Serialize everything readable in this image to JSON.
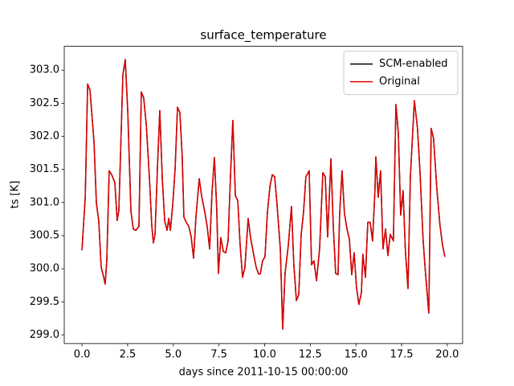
{
  "chart_data": {
    "type": "line",
    "title": "surface_temperature",
    "xlabel": "days since 2011-10-15 00:00:00",
    "ylabel": "ts [K]",
    "x": [
      0,
      0.18,
      0.31,
      0.44,
      0.66,
      0.79,
      0.92,
      1.05,
      1.19,
      1.27,
      1.36,
      1.49,
      1.63,
      1.8,
      1.93,
      2.02,
      2.24,
      2.37,
      2.51,
      2.68,
      2.81,
      2.95,
      3.12,
      3.25,
      3.38,
      3.52,
      3.69,
      3.82,
      3.91,
      4.0,
      4.13,
      4.26,
      4.4,
      4.53,
      4.66,
      4.75,
      4.84,
      4.97,
      5.1,
      5.23,
      5.36,
      5.49,
      5.58,
      5.71,
      5.85,
      5.98,
      6.11,
      6.24,
      6.42,
      6.55,
      6.73,
      6.86,
      6.99,
      7.12,
      7.25,
      7.38,
      7.47,
      7.6,
      7.74,
      7.87,
      8.0,
      8.13,
      8.26,
      8.4,
      8.53,
      8.66,
      8.79,
      8.92,
      9.1,
      9.23,
      9.41,
      9.54,
      9.67,
      9.76,
      9.89,
      10.02,
      10.15,
      10.29,
      10.42,
      10.55,
      10.68,
      10.86,
      10.99,
      11.12,
      11.3,
      11.47,
      11.6,
      11.74,
      11.87,
      12.0,
      12.13,
      12.26,
      12.44,
      12.57,
      12.7,
      12.84,
      13.01,
      13.19,
      13.32,
      13.45,
      13.63,
      13.76,
      13.89,
      14.02,
      14.11,
      14.24,
      14.37,
      14.51,
      14.64,
      14.77,
      14.9,
      15.03,
      15.16,
      15.3,
      15.38,
      15.52,
      15.65,
      15.78,
      15.91,
      16.04,
      16.09,
      16.22,
      16.35,
      16.48,
      16.62,
      16.75,
      16.88,
      17.05,
      17.19,
      17.32,
      17.45,
      17.58,
      17.71,
      17.85,
      17.98,
      18.2,
      18.37,
      18.51,
      18.68,
      18.81,
      18.99,
      19.12,
      19.25,
      19.43,
      19.6,
      19.74,
      19.87
    ],
    "series": [
      {
        "name": "SCM-enabled",
        "color": "#000000",
        "values": [
          300.28,
          301.08,
          302.79,
          302.7,
          301.91,
          300.99,
          300.72,
          300.03,
          299.87,
          299.77,
          300.13,
          301.48,
          301.42,
          301.3,
          300.73,
          300.88,
          302.93,
          303.16,
          302.36,
          300.87,
          300.6,
          300.58,
          300.64,
          302.67,
          302.58,
          302.18,
          301.39,
          300.66,
          300.39,
          300.52,
          301.51,
          302.39,
          301.35,
          300.72,
          300.58,
          300.76,
          300.58,
          300.97,
          301.51,
          302.44,
          302.36,
          301.69,
          300.78,
          300.7,
          300.64,
          300.48,
          300.16,
          300.78,
          301.36,
          301.1,
          300.85,
          300.63,
          300.3,
          301.15,
          301.68,
          300.9,
          299.93,
          300.47,
          300.26,
          300.24,
          300.42,
          301.39,
          302.24,
          301.1,
          301.03,
          300.36,
          299.87,
          300.02,
          300.76,
          300.47,
          300.2,
          300.02,
          299.92,
          299.92,
          300.12,
          300.18,
          300.84,
          301.24,
          301.42,
          301.39,
          300.97,
          300.3,
          299.09,
          299.93,
          300.36,
          300.94,
          300.06,
          299.52,
          299.61,
          300.51,
          300.85,
          301.39,
          301.48,
          300.06,
          300.12,
          299.82,
          300.3,
          301.45,
          301.39,
          300.48,
          301.66,
          300.64,
          299.93,
          299.91,
          300.84,
          301.48,
          300.84,
          300.6,
          300.45,
          299.91,
          300.24,
          299.72,
          299.46,
          299.64,
          300.22,
          299.87,
          300.7,
          300.7,
          300.42,
          301.18,
          301.69,
          301.08,
          301.48,
          300.3,
          300.6,
          300.2,
          300.52,
          300.42,
          302.48,
          302.06,
          300.81,
          301.18,
          300.26,
          299.7,
          301.39,
          302.54,
          302.12,
          301.45,
          300.42,
          299.93,
          299.33,
          302.12,
          301.97,
          301.21,
          300.66,
          300.36,
          300.18
        ]
      },
      {
        "name": "Original",
        "color": "#e00000",
        "values": [
          300.28,
          301.08,
          302.79,
          302.7,
          301.91,
          300.99,
          300.72,
          300.03,
          299.87,
          299.77,
          300.13,
          301.48,
          301.42,
          301.3,
          300.73,
          300.88,
          302.93,
          303.16,
          302.36,
          300.87,
          300.6,
          300.58,
          300.64,
          302.67,
          302.58,
          302.18,
          301.39,
          300.66,
          300.39,
          300.52,
          301.51,
          302.39,
          301.35,
          300.72,
          300.58,
          300.76,
          300.58,
          300.97,
          301.51,
          302.44,
          302.36,
          301.69,
          300.78,
          300.7,
          300.64,
          300.48,
          300.16,
          300.78,
          301.36,
          301.1,
          300.85,
          300.63,
          300.3,
          301.15,
          301.68,
          300.9,
          299.93,
          300.47,
          300.26,
          300.24,
          300.42,
          301.39,
          302.24,
          301.1,
          301.03,
          300.36,
          299.87,
          300.02,
          300.76,
          300.47,
          300.2,
          300.02,
          299.92,
          299.92,
          300.12,
          300.18,
          300.84,
          301.24,
          301.42,
          301.39,
          300.97,
          300.3,
          299.09,
          299.93,
          300.36,
          300.94,
          300.06,
          299.52,
          299.61,
          300.51,
          300.85,
          301.39,
          301.48,
          300.06,
          300.12,
          299.82,
          300.3,
          301.45,
          301.39,
          300.48,
          301.66,
          300.64,
          299.93,
          299.91,
          300.84,
          301.48,
          300.84,
          300.6,
          300.45,
          299.91,
          300.24,
          299.72,
          299.46,
          299.64,
          300.22,
          299.87,
          300.7,
          300.7,
          300.42,
          301.18,
          301.69,
          301.08,
          301.48,
          300.3,
          300.6,
          300.2,
          300.52,
          300.42,
          302.48,
          302.06,
          300.81,
          301.18,
          300.26,
          299.7,
          301.39,
          302.54,
          302.12,
          301.45,
          300.42,
          299.93,
          299.33,
          302.12,
          301.97,
          301.21,
          300.66,
          300.36,
          300.18
        ]
      }
    ],
    "xlim": [
      -0.97,
      20.84
    ],
    "ylim": [
      298.87,
      303.36
    ],
    "xticks": [
      {
        "value": 0,
        "label": "0.0"
      },
      {
        "value": 2.5,
        "label": "2.5"
      },
      {
        "value": 5,
        "label": "5.0"
      },
      {
        "value": 7.5,
        "label": "7.5"
      },
      {
        "value": 10,
        "label": "10.0"
      },
      {
        "value": 12.5,
        "label": "12.5"
      },
      {
        "value": 15,
        "label": "15.0"
      },
      {
        "value": 17.5,
        "label": "17.5"
      },
      {
        "value": 20,
        "label": "20.0"
      }
    ],
    "yticks": [
      {
        "value": 299,
        "label": "299.0"
      },
      {
        "value": 299.5,
        "label": "299.5"
      },
      {
        "value": 300,
        "label": "300.0"
      },
      {
        "value": 300.5,
        "label": "300.5"
      },
      {
        "value": 301,
        "label": "301.0"
      },
      {
        "value": 301.5,
        "label": "301.5"
      },
      {
        "value": 302,
        "label": "302.0"
      },
      {
        "value": 302.5,
        "label": "302.5"
      },
      {
        "value": 303,
        "label": "303.0"
      }
    ],
    "grid": false,
    "legend": "upper right"
  }
}
